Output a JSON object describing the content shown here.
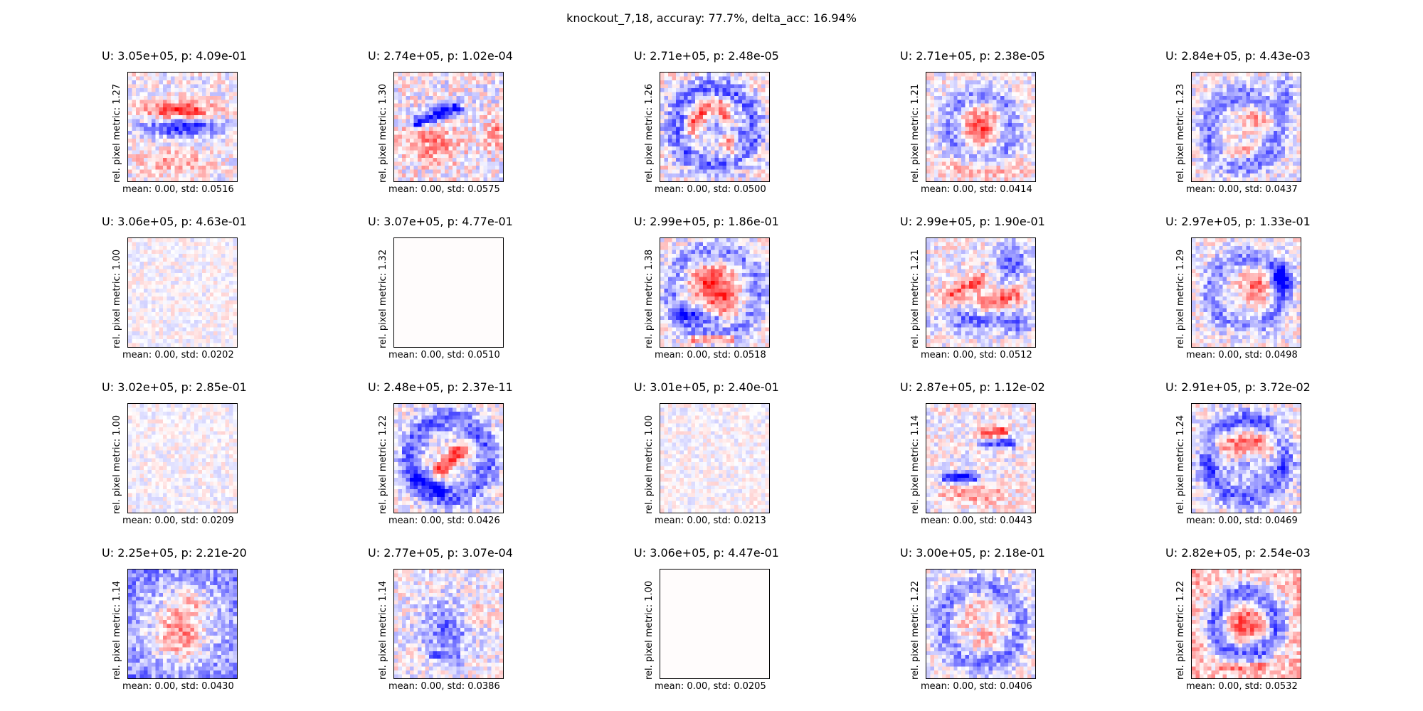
{
  "chart_data": {
    "type": "heatmap",
    "title": "knockout_7,18, accuray: 77.7%, delta_acc: 16.94%",
    "grid": "off",
    "colormap": "bwr",
    "layout": "4 rows x 5 columns",
    "colors": {
      "negative": "#0000ff",
      "zero": "#ffffff",
      "positive": "#ff0000"
    },
    "panels": [
      {
        "title": "U: 3.05e+05, p: 4.09e-01",
        "ylabel": "rel. pixel metric: 1.27",
        "xlabel": "mean: 0.00, std: 0.0516",
        "pattern": "horizontal red band over blue band"
      },
      {
        "title": "U: 2.74e+05, p: 1.02e-04",
        "ylabel": "rel. pixel metric: 1.30",
        "xlabel": "mean: 0.00, std: 0.0575",
        "pattern": "diagonal dark blue stroke"
      },
      {
        "title": "U: 2.71e+05, p: 2.48e-05",
        "ylabel": "rel. pixel metric: 1.26",
        "xlabel": "mean: 0.00, std: 0.0500",
        "pattern": "ring with mixed strokes"
      },
      {
        "title": "U: 2.71e+05, p: 2.38e-05",
        "ylabel": "rel. pixel metric: 1.21",
        "xlabel": "mean: 0.00, std: 0.0414",
        "pattern": "blue ring with red center"
      },
      {
        "title": "U: 2.84e+05, p: 4.43e-03",
        "ylabel": "rel. pixel metric: 1.23",
        "xlabel": "mean: 0.00, std: 0.0437",
        "pattern": "mixed strokes, blue at right"
      },
      {
        "title": "U: 3.06e+05, p: 4.63e-01",
        "ylabel": "rel. pixel metric: 1.00",
        "xlabel": "mean: 0.00, std: 0.0202",
        "pattern": "faint noise"
      },
      {
        "title": "U: 3.07e+05, p: 4.77e-01",
        "ylabel": "rel. pixel metric: 1.32",
        "xlabel": "mean: 0.00, std: 0.0510",
        "pattern": "blank"
      },
      {
        "title": "U: 2.99e+05, p: 1.86e-01",
        "ylabel": "rel. pixel metric: 1.38",
        "xlabel": "mean: 0.00, std: 0.0518",
        "pattern": "red center, blue lower left, red bottom line"
      },
      {
        "title": "U: 2.99e+05, p: 1.90e-01",
        "ylabel": "rel. pixel metric: 1.21",
        "xlabel": "mean: 0.00, std: 0.0512",
        "pattern": "red diagonal bands, blue lower"
      },
      {
        "title": "U: 2.97e+05, p: 1.33e-01",
        "ylabel": "rel. pixel metric: 1.29",
        "xlabel": "mean: 0.00, std: 0.0498",
        "pattern": "blue ring right, red center"
      },
      {
        "title": "U: 3.02e+05, p: 2.85e-01",
        "ylabel": "rel. pixel metric: 1.00",
        "xlabel": "mean: 0.00, std: 0.0209",
        "pattern": "faint noise"
      },
      {
        "title": "U: 2.48e+05, p: 2.37e-11",
        "ylabel": "rel. pixel metric: 1.22",
        "xlabel": "mean: 0.00, std: 0.0426",
        "pattern": "blue ring with red diagonal center"
      },
      {
        "title": "U: 3.01e+05, p: 2.40e-01",
        "ylabel": "rel. pixel metric: 1.00",
        "xlabel": "mean: 0.00, std: 0.0213",
        "pattern": "faint noise"
      },
      {
        "title": "U: 2.87e+05, p: 1.12e-02",
        "ylabel": "rel. pixel metric: 1.14",
        "xlabel": "mean: 0.00, std: 0.0443",
        "pattern": "red and blue upper strokes, blue bar lower left"
      },
      {
        "title": "U: 2.91e+05, p: 3.72e-02",
        "ylabel": "rel. pixel metric: 1.24",
        "xlabel": "mean: 0.00, std: 0.0469",
        "pattern": "blue ring, red middle band"
      },
      {
        "title": "U: 2.25e+05, p: 2.21e-20",
        "ylabel": "rel. pixel metric: 1.14",
        "xlabel": "mean: 0.00, std: 0.0430",
        "pattern": "blue border, red center"
      },
      {
        "title": "U: 2.77e+05, p: 3.07e-04",
        "ylabel": "rel. pixel metric: 1.14",
        "xlabel": "mean: 0.00, std: 0.0386",
        "pattern": "light ring, blue center strokes"
      },
      {
        "title": "U: 3.06e+05, p: 4.47e-01",
        "ylabel": "rel. pixel metric: 1.00",
        "xlabel": "mean: 0.00, std: 0.0205",
        "pattern": "blank"
      },
      {
        "title": "U: 3.00e+05, p: 2.18e-01",
        "ylabel": "rel. pixel metric: 1.22",
        "xlabel": "mean: 0.00, std: 0.0406",
        "pattern": "blue ring with mixed center"
      },
      {
        "title": "U: 2.82e+05, p: 2.54e-03",
        "ylabel": "rel. pixel metric: 1.22",
        "xlabel": "mean: 0.00, std: 0.0532",
        "pattern": "blue ring, red center, red border"
      }
    ]
  }
}
